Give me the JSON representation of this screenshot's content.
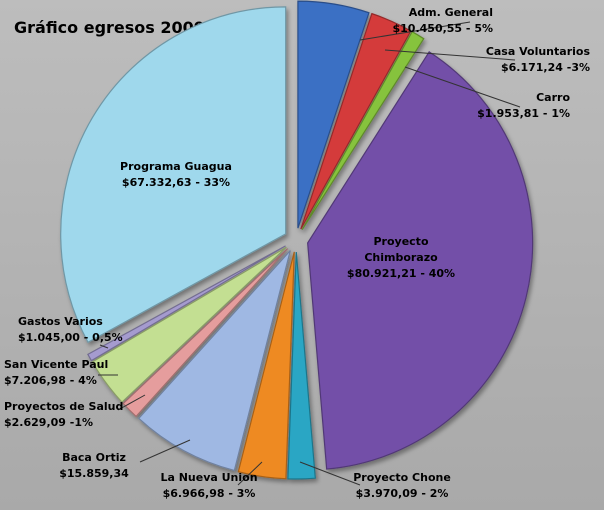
{
  "chart_data": {
    "type": "pie",
    "title": "Gráfico egresos 2009",
    "slices": [
      {
        "name": "Adm. General",
        "value": 10450.55,
        "label_value": "$10.450,55 - 5%",
        "color": "#3a6fc4"
      },
      {
        "name": "Casa Voluntarios",
        "value": 6171.24,
        "label_value": "$6.171,24 -3%",
        "color": "#d43a3a"
      },
      {
        "name": "Carro",
        "value": 1953.81,
        "label_value": "$1.953,81 - 1%",
        "color": "#86c33c"
      },
      {
        "name": "Proyecto Chimborazo",
        "value": 80921.21,
        "label_value": "$80.921,21 - 40%",
        "color": "#7350a8"
      },
      {
        "name": "Proyecto Chone",
        "value": 3970.09,
        "label_value": "$3.970,09 - 2%",
        "color": "#2ba6c4"
      },
      {
        "name": "La Nueva Union",
        "value": 6966.98,
        "label_value": "$6.966,98 - 3%",
        "color": "#ee8a24"
      },
      {
        "name": "Baca Ortiz",
        "value": 15859.34,
        "label_value": "$15.859,34",
        "color": "#9fb8e3"
      },
      {
        "name": "Proyectos de Salud",
        "value": 2629.09,
        "label_value": "$2.629,09 -1%",
        "color": "#e59d9d"
      },
      {
        "name": "San Vicente Paul",
        "value": 7206.98,
        "label_value": "$7.206,98 - 4%",
        "color": "#c3df92"
      },
      {
        "name": "Gastos Varios",
        "value": 1045.0,
        "label_value": "$1.045,00 - 0,5%",
        "color": "#a59bcf"
      },
      {
        "name": "Programa Guagua",
        "value": 67332.63,
        "label_value": "$67.332,63 - 33%",
        "color": "#9fd8ec"
      }
    ]
  }
}
